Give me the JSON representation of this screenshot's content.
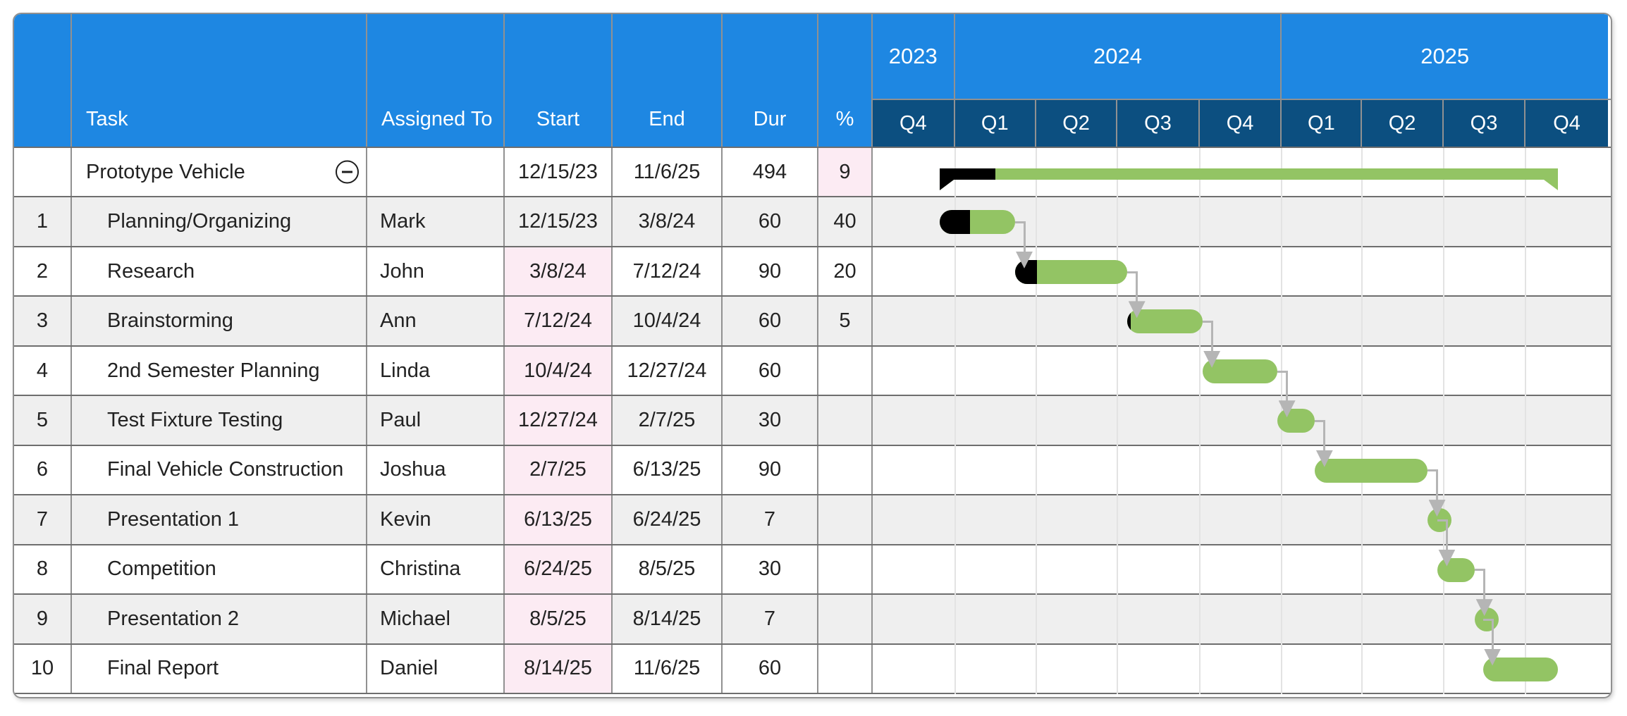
{
  "colors": {
    "header-blue": "#1e87e2",
    "quarter-navy": "#0c4f80",
    "bar-green": "#93c464",
    "bar-black": "#000000",
    "highlight-pink": "#fcebf3",
    "row-alt": "#efefef",
    "connector-gray": "#b5b5b5",
    "grid-line": "#e3e3e3",
    "border-dark": "#6e6e6e",
    "border-mid": "#919191",
    "frame-border": "#909090",
    "text-dark": "#222222",
    "header-text": "#ffffff"
  },
  "table": {
    "headers": {
      "num": "",
      "task": "Task",
      "assigned": "Assigned To",
      "start": "Start",
      "end": "End",
      "dur": "Dur",
      "pct": "%"
    }
  },
  "timeline": {
    "range_start": "2023-10-01",
    "range_end": "2026-01-01",
    "years": [
      {
        "label": "2023",
        "quarters": [
          {
            "label": "Q4",
            "from": "2023-10-01",
            "to": "2024-01-01"
          }
        ]
      },
      {
        "label": "2024",
        "quarters": [
          {
            "label": "Q1",
            "from": "2024-01-01",
            "to": "2024-04-01"
          },
          {
            "label": "Q2",
            "from": "2024-04-01",
            "to": "2024-07-01"
          },
          {
            "label": "Q3",
            "from": "2024-07-01",
            "to": "2024-10-01"
          },
          {
            "label": "Q4",
            "from": "2024-10-01",
            "to": "2025-01-01"
          }
        ]
      },
      {
        "label": "2025",
        "quarters": [
          {
            "label": "Q1",
            "from": "2025-01-01",
            "to": "2025-04-01"
          },
          {
            "label": "Q2",
            "from": "2025-04-01",
            "to": "2025-07-01"
          },
          {
            "label": "Q3",
            "from": "2025-07-01",
            "to": "2025-10-01"
          },
          {
            "label": "Q4",
            "from": "2025-10-01",
            "to": "2026-01-01"
          }
        ]
      }
    ]
  },
  "chart_data": {
    "type": "gantt",
    "tasks": [
      {
        "num": "",
        "name": "Prototype Vehicle",
        "assigned": "",
        "start": "12/15/23",
        "end": "11/6/25",
        "dur": "494",
        "pct": "9",
        "summary": true,
        "collapse_icon": true,
        "pct_highlight": true
      },
      {
        "num": "1",
        "name": "Planning/Organizing",
        "assigned": "Mark",
        "start": "12/15/23",
        "end": "3/8/24",
        "dur": "60",
        "pct": "40"
      },
      {
        "num": "2",
        "name": "Research",
        "assigned": "John",
        "start": "3/8/24",
        "end": "7/12/24",
        "dur": "90",
        "pct": "20",
        "start_highlight": true
      },
      {
        "num": "3",
        "name": "Brainstorming",
        "assigned": "Ann",
        "start": "7/12/24",
        "end": "10/4/24",
        "dur": "60",
        "pct": "5",
        "start_highlight": true
      },
      {
        "num": "4",
        "name": "2nd Semester Planning",
        "assigned": "Linda",
        "start": "10/4/24",
        "end": "12/27/24",
        "dur": "60",
        "pct": "",
        "start_highlight": true
      },
      {
        "num": "5",
        "name": "Test Fixture Testing",
        "assigned": "Paul",
        "start": "12/27/24",
        "end": "2/7/25",
        "dur": "30",
        "pct": "",
        "start_highlight": true
      },
      {
        "num": "6",
        "name": "Final Vehicle Construction",
        "assigned": "Joshua",
        "start": "2/7/25",
        "end": "6/13/25",
        "dur": "90",
        "pct": "",
        "start_highlight": true
      },
      {
        "num": "7",
        "name": "Presentation 1",
        "assigned": "Kevin",
        "start": "6/13/25",
        "end": "6/24/25",
        "dur": "7",
        "pct": "",
        "start_highlight": true
      },
      {
        "num": "8",
        "name": "Competition",
        "assigned": "Christina",
        "start": "6/24/25",
        "end": "8/5/25",
        "dur": "30",
        "pct": "",
        "start_highlight": true
      },
      {
        "num": "9",
        "name": "Presentation 2",
        "assigned": "Michael",
        "start": "8/5/25",
        "end": "8/14/25",
        "dur": "7",
        "pct": "",
        "start_highlight": true
      },
      {
        "num": "10",
        "name": "Final Report",
        "assigned": "Daniel",
        "start": "8/14/25",
        "end": "11/6/25",
        "dur": "60",
        "pct": "",
        "start_highlight": true
      }
    ],
    "links": [
      [
        1,
        2
      ],
      [
        2,
        3
      ],
      [
        3,
        4
      ],
      [
        4,
        5
      ],
      [
        5,
        6
      ],
      [
        6,
        7
      ],
      [
        7,
        8
      ],
      [
        8,
        9
      ],
      [
        9,
        10
      ]
    ]
  }
}
